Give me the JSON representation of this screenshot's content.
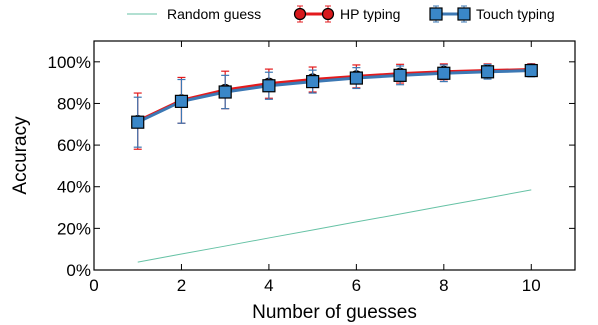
{
  "chart_data": {
    "type": "line",
    "xlabel": "Number of guesses",
    "ylabel": "Accuracy",
    "xlim": [
      0,
      11
    ],
    "ylim": [
      0,
      1.1
    ],
    "x_ticks": [
      0,
      2,
      4,
      6,
      8,
      10
    ],
    "x_tick_labels": [
      "0",
      "2",
      "4",
      "6",
      "8",
      "10"
    ],
    "y_ticks": [
      0,
      0.2,
      0.4,
      0.6,
      0.8,
      1.0
    ],
    "y_tick_labels": [
      "0%",
      "20%",
      "40%",
      "60%",
      "80%",
      "100%"
    ],
    "grid": false,
    "legend_position": "top",
    "x": [
      1,
      2,
      3,
      4,
      5,
      6,
      7,
      8,
      9,
      10
    ],
    "series": [
      {
        "name": "Random guess",
        "style": "line",
        "color": "#66c2a5",
        "values": [
          0.038,
          0.077,
          0.115,
          0.154,
          0.192,
          0.231,
          0.269,
          0.308,
          0.346,
          0.385
        ]
      },
      {
        "name": "HP typing",
        "style": "line-circle-errorbar",
        "color": "#e31a1c",
        "marker_fill": "#d7191c",
        "values": [
          0.715,
          0.815,
          0.865,
          0.895,
          0.915,
          0.93,
          0.943,
          0.952,
          0.958,
          0.963
        ],
        "error": [
          0.135,
          0.11,
          0.09,
          0.07,
          0.06,
          0.055,
          0.045,
          0.038,
          0.032,
          0.028
        ]
      },
      {
        "name": "Touch typing",
        "style": "line-square-errorbar",
        "color": "#3c78b4",
        "marker_fill": "#3a87c8",
        "values": [
          0.71,
          0.81,
          0.855,
          0.885,
          0.905,
          0.922,
          0.935,
          0.945,
          0.952,
          0.958
        ],
        "error": [
          0.12,
          0.105,
          0.08,
          0.065,
          0.055,
          0.05,
          0.045,
          0.04,
          0.035,
          0.03
        ]
      }
    ]
  }
}
